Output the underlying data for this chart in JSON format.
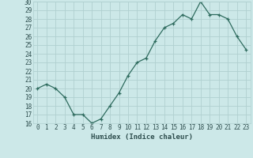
{
  "x": [
    0,
    1,
    2,
    3,
    4,
    5,
    6,
    7,
    8,
    9,
    10,
    11,
    12,
    13,
    14,
    15,
    16,
    17,
    18,
    19,
    20,
    21,
    22,
    23
  ],
  "y": [
    20,
    20.5,
    20,
    19,
    17,
    17,
    16,
    16.5,
    18,
    19.5,
    21.5,
    23,
    23.5,
    25.5,
    27,
    27.5,
    28.5,
    28,
    30,
    28.5,
    28.5,
    28,
    26,
    24.5
  ],
  "xlabel": "Humidex (Indice chaleur)",
  "ylim": [
    16,
    30
  ],
  "xlim": [
    -0.5,
    23.5
  ],
  "yticks": [
    16,
    17,
    18,
    19,
    20,
    21,
    22,
    23,
    24,
    25,
    26,
    27,
    28,
    29,
    30
  ],
  "xticks": [
    0,
    1,
    2,
    3,
    4,
    5,
    6,
    7,
    8,
    9,
    10,
    11,
    12,
    13,
    14,
    15,
    16,
    17,
    18,
    19,
    20,
    21,
    22,
    23
  ],
  "line_color": "#2e6b5e",
  "marker": "+",
  "bg_color": "#cce8e8",
  "grid_color": "#b0d0d0",
  "xlabel_color": "#2e4e4e",
  "tick_label_color": "#2e4e4e",
  "tick_fontsize": 5.5,
  "xlabel_fontsize": 6.5
}
